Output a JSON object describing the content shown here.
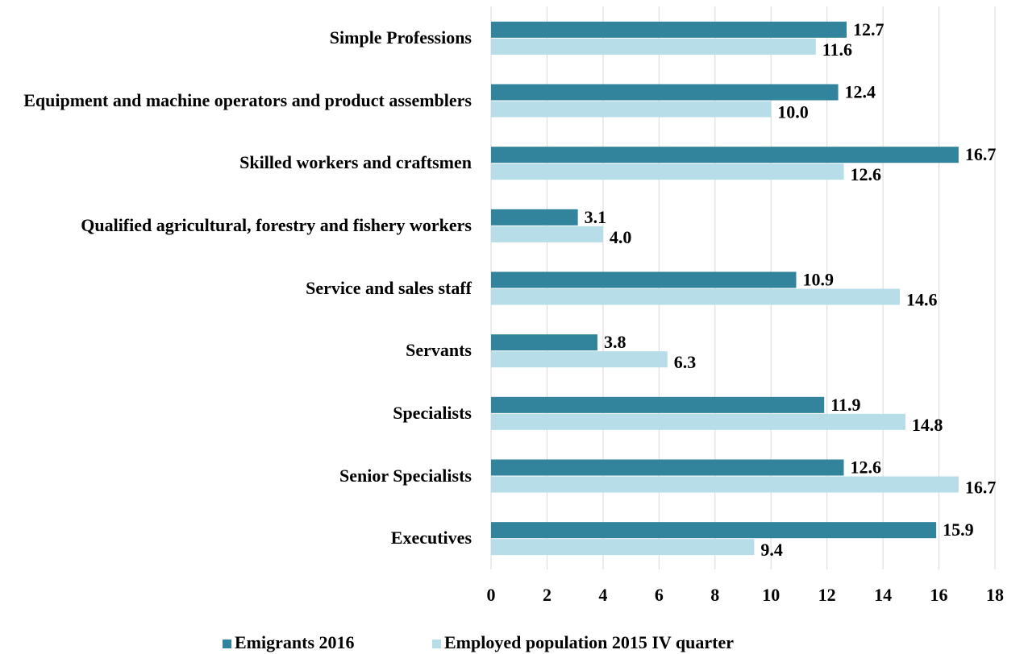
{
  "chart_data": {
    "type": "bar",
    "orientation": "horizontal",
    "categories": [
      "Simple Professions",
      "Equipment and machine operators and product assemblers",
      "Skilled workers and craftsmen",
      "Qualified agricultural, forestry and fishery workers",
      "Service and sales staff",
      "Servants",
      "Specialists",
      "Senior Specialists",
      "Executives"
    ],
    "series": [
      {
        "name": "Emigrants 2016",
        "color": "#31849b",
        "values": [
          12.7,
          12.4,
          16.7,
          3.1,
          10.9,
          3.8,
          11.9,
          12.6,
          15.9
        ],
        "value_labels": [
          "12.7",
          "12.4",
          "16.7",
          "3.1",
          "10.9",
          "3.8",
          "11.9",
          "12.6",
          "15.9"
        ]
      },
      {
        "name": "Employed population 2015 IV quarter",
        "color": "#b7dde8",
        "values": [
          11.6,
          10.0,
          12.6,
          4.0,
          14.6,
          6.3,
          14.8,
          16.7,
          9.4
        ],
        "value_labels": [
          "11.6",
          "10.0",
          "12.6",
          "4.0",
          "14.6",
          "6.3",
          "14.8",
          "16.7",
          "9.4"
        ]
      }
    ],
    "xlim": [
      0,
      18
    ],
    "xticks": [
      0,
      2,
      4,
      6,
      8,
      10,
      12,
      14,
      16,
      18
    ],
    "grid": true,
    "legend": "bottom"
  }
}
